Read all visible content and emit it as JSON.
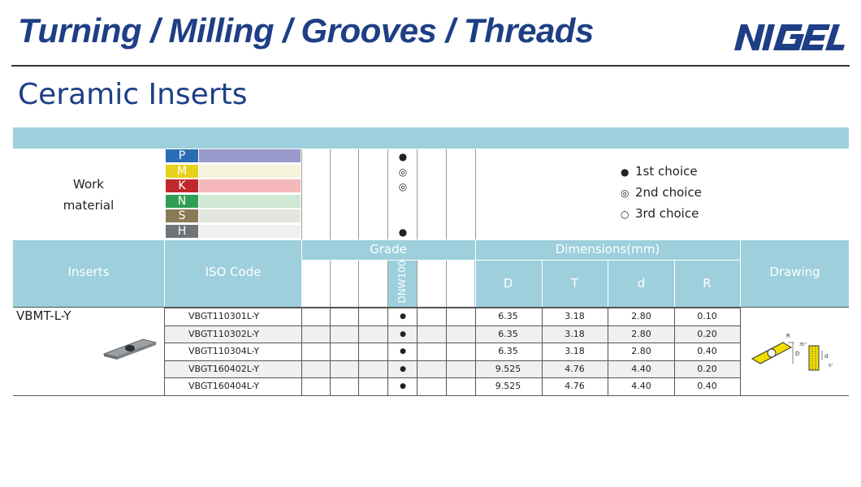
{
  "banner": "Turning / Milling / Grooves / Threads",
  "brand": "NIGEL",
  "title": "Ceramic Inserts",
  "work_material": {
    "label_line1": "Work",
    "label_line2": "material",
    "materials": [
      {
        "letter": "P",
        "letter_color": "#2a6db5",
        "bar_color": "#9999cc",
        "mark": "●"
      },
      {
        "letter": "M",
        "letter_color": "#e6d21c",
        "bar_color": "#f5f3dc",
        "mark": "◎"
      },
      {
        "letter": "K",
        "letter_color": "#c0282d",
        "bar_color": "#f6b9bb",
        "mark": "◎"
      },
      {
        "letter": "N",
        "letter_color": "#2e9e55",
        "bar_color": "#cfe8d3",
        "mark": ""
      },
      {
        "letter": "S",
        "letter_color": "#8a7a55",
        "bar_color": "#e2e6dc",
        "mark": ""
      },
      {
        "letter": "H",
        "letter_color": "#6e7478",
        "bar_color": "#efefef",
        "mark": "●"
      }
    ]
  },
  "legend": [
    {
      "symbol": "●",
      "text": "1st choice"
    },
    {
      "symbol": "◎",
      "text": "2nd choice"
    },
    {
      "symbol": "○",
      "text": "3rd choice"
    }
  ],
  "headers": {
    "inserts": "Inserts",
    "iso_code": "ISO Code",
    "grade": "Grade",
    "grade_name": "DNW100",
    "dimensions": "Dimensions(mm)",
    "D": "D",
    "T": "T",
    "d": "d",
    "R": "R",
    "drawing": "Drawing"
  },
  "insert_name": "VBMT-L-Y",
  "rows": [
    {
      "iso": "VBGT110301L-Y",
      "mark": "●",
      "D": "6.35",
      "T": "3.18",
      "d": "2.80",
      "R": "0.10"
    },
    {
      "iso": "VBGT110302L-Y",
      "mark": "●",
      "D": "6.35",
      "T": "3.18",
      "d": "2.80",
      "R": "0.20"
    },
    {
      "iso": "VBGT110304L-Y",
      "mark": "●",
      "D": "6.35",
      "T": "3.18",
      "d": "2.80",
      "R": "0.40"
    },
    {
      "iso": "VBGT160402L-Y",
      "mark": "●",
      "D": "9.525",
      "T": "4.76",
      "d": "4.40",
      "R": "0.20"
    },
    {
      "iso": "VBGT160404L-Y",
      "mark": "●",
      "D": "9.525",
      "T": "4.76",
      "d": "4.40",
      "R": "0.40"
    }
  ],
  "drawing_labels": {
    "r": "R",
    "d_big": "D",
    "d_small": "d",
    "angle1": "35°",
    "angle2": "5°"
  }
}
